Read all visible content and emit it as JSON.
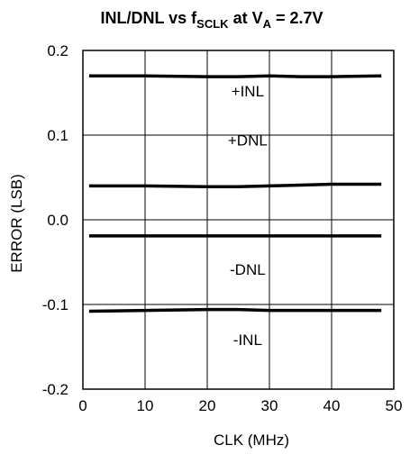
{
  "chart_data": {
    "type": "line",
    "title": {
      "parts": [
        {
          "text": "INL/DNL vs f",
          "sub": false
        },
        {
          "text": "SCLK",
          "sub": true
        },
        {
          "text": " at V",
          "sub": false
        },
        {
          "text": "A",
          "sub": true
        },
        {
          "text": " = 2.7V",
          "sub": false
        }
      ]
    },
    "xlabel": "CLK (MHz)",
    "ylabel": "ERROR (LSB)",
    "xlim": [
      0,
      50
    ],
    "ylim": [
      -0.2,
      0.2
    ],
    "xticks": [
      0,
      10,
      20,
      30,
      40,
      50
    ],
    "xtick_labels": [
      "0",
      "10",
      "20",
      "30",
      "40",
      "50"
    ],
    "yticks": [
      -0.2,
      -0.1,
      0.0,
      0.1,
      0.2
    ],
    "ytick_labels": [
      "-0.2",
      "-0.1",
      "0.0",
      "0.1",
      "0.2"
    ],
    "grid": true,
    "series": [
      {
        "name": "+INL",
        "x": [
          1,
          10,
          20,
          25,
          30,
          35,
          40,
          48
        ],
        "y": [
          0.17,
          0.17,
          0.169,
          0.169,
          0.17,
          0.169,
          0.169,
          0.17
        ]
      },
      {
        "name": "+DNL",
        "x": [
          1,
          10,
          20,
          25,
          30,
          35,
          40,
          48
        ],
        "y": [
          0.04,
          0.04,
          0.039,
          0.039,
          0.04,
          0.041,
          0.042,
          0.042
        ]
      },
      {
        "name": "-DNL",
        "x": [
          1,
          10,
          20,
          30,
          40,
          48
        ],
        "y": [
          -0.019,
          -0.019,
          -0.019,
          -0.019,
          -0.019,
          -0.019
        ]
      },
      {
        "name": "-INL",
        "x": [
          1,
          10,
          20,
          25,
          30,
          35,
          40,
          48
        ],
        "y": [
          -0.108,
          -0.107,
          -0.106,
          -0.106,
          -0.107,
          -0.107,
          -0.107,
          -0.107
        ]
      }
    ],
    "annotations": [
      {
        "text": "+INL",
        "x": 26.5,
        "y": 0.146
      },
      {
        "text": "+DNL",
        "x": 26.5,
        "y": 0.088
      },
      {
        "text": "-DNL",
        "x": 26.5,
        "y": -0.065
      },
      {
        "text": "-INL",
        "x": 26.5,
        "y": -0.148
      }
    ]
  }
}
